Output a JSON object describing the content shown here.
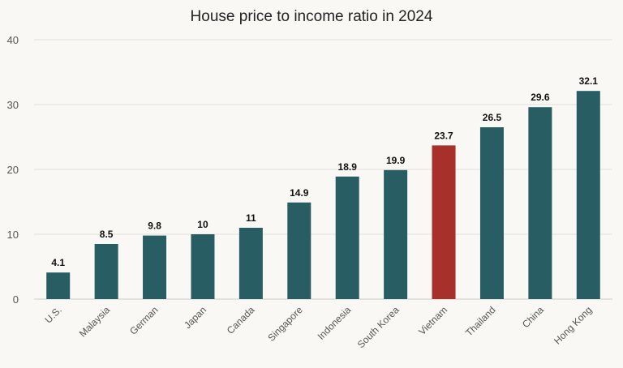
{
  "chart_data": {
    "type": "bar",
    "title": "House price to income ratio in 2024",
    "categories": [
      "U.S.",
      "Malaysia",
      "German",
      "Japan",
      "Canada",
      "Singapore",
      "Indonesia",
      "South Korea",
      "Vietnam",
      "Thailand",
      "China",
      "Hong Kong"
    ],
    "values": [
      4.1,
      8.5,
      9.8,
      10,
      11,
      14.9,
      18.9,
      19.9,
      23.7,
      26.5,
      29.6,
      32.1
    ],
    "value_labels": [
      "4.1",
      "8.5",
      "9.8",
      "10",
      "11",
      "14.9",
      "18.9",
      "19.9",
      "23.7",
      "26.5",
      "29.6",
      "32.1"
    ],
    "ylim": [
      0,
      40
    ],
    "yticks": [
      0,
      10,
      20,
      30,
      40
    ],
    "grid": true,
    "colors": {
      "default_bar": "#285d63",
      "highlight_bar": "#a7302a",
      "highlight_category": "Vietnam"
    }
  }
}
